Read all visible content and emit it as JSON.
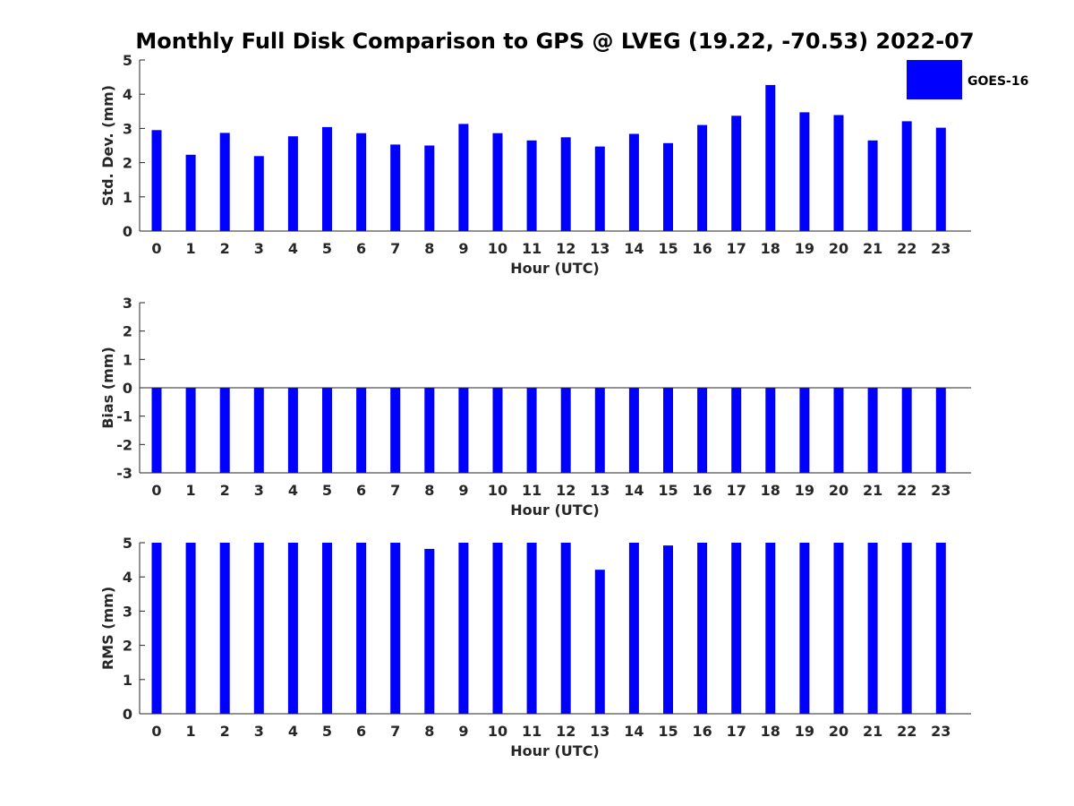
{
  "title": "Monthly Full Disk Comparison to GPS @ LVEG (19.22, -70.53) 2022-07",
  "legend": {
    "label": "GOES-16",
    "color": "#0000ff",
    "placement": "top-right"
  },
  "bar_color": "#0000ff",
  "chart_data": [
    {
      "type": "bar",
      "categories": [
        "0",
        "1",
        "2",
        "3",
        "4",
        "5",
        "6",
        "7",
        "8",
        "9",
        "10",
        "11",
        "12",
        "13",
        "14",
        "15",
        "16",
        "17",
        "18",
        "19",
        "20",
        "21",
        "22",
        "23"
      ],
      "series": [
        {
          "name": "GOES-16",
          "values": [
            2.95,
            2.23,
            2.87,
            2.19,
            2.77,
            3.04,
            2.86,
            2.53,
            2.5,
            3.13,
            2.86,
            2.65,
            2.74,
            2.47,
            2.84,
            2.57,
            3.1,
            3.37,
            4.27,
            3.47,
            3.39,
            2.65,
            3.21,
            3.02
          ]
        }
      ],
      "xlabel": "Hour (UTC)",
      "ylabel": "Std. Dev. (mm)",
      "ylim": [
        0,
        5
      ],
      "yticks": [
        "0",
        "1",
        "2",
        "3",
        "4",
        "5"
      ],
      "grid": false
    },
    {
      "type": "bar",
      "categories": [
        "0",
        "1",
        "2",
        "3",
        "4",
        "5",
        "6",
        "7",
        "8",
        "9",
        "10",
        "11",
        "12",
        "13",
        "14",
        "15",
        "16",
        "17",
        "18",
        "19",
        "20",
        "21",
        "22",
        "23"
      ],
      "series": [
        {
          "name": "GOES-16",
          "values": [
            -3,
            -3,
            -3,
            -3,
            -3,
            -3,
            -3,
            -3,
            -3,
            -3,
            -3,
            -3,
            -3,
            -3,
            -3,
            -3,
            -3,
            -3,
            -3,
            -3,
            -3,
            -3,
            -3,
            -3
          ]
        }
      ],
      "xlabel": "Hour (UTC)",
      "ylabel": "Bias (mm)",
      "ylim": [
        -3,
        3
      ],
      "yticks": [
        "-3",
        "-2",
        "-1",
        "0",
        "1",
        "2",
        "3"
      ],
      "zero_line": true,
      "grid": false
    },
    {
      "type": "bar",
      "categories": [
        "0",
        "1",
        "2",
        "3",
        "4",
        "5",
        "6",
        "7",
        "8",
        "9",
        "10",
        "11",
        "12",
        "13",
        "14",
        "15",
        "16",
        "17",
        "18",
        "19",
        "20",
        "21",
        "22",
        "23"
      ],
      "series": [
        {
          "name": "GOES-16",
          "values": [
            5,
            5,
            5,
            5,
            5,
            5,
            5,
            5,
            4.82,
            5,
            5,
            5,
            5,
            4.21,
            5,
            4.92,
            5,
            5,
            5,
            5,
            5,
            5,
            5,
            5
          ]
        }
      ],
      "xlabel": "Hour (UTC)",
      "ylabel": "RMS (mm)",
      "ylim": [
        0,
        5
      ],
      "yticks": [
        "0",
        "1",
        "2",
        "3",
        "4",
        "5"
      ],
      "grid": false
    }
  ]
}
